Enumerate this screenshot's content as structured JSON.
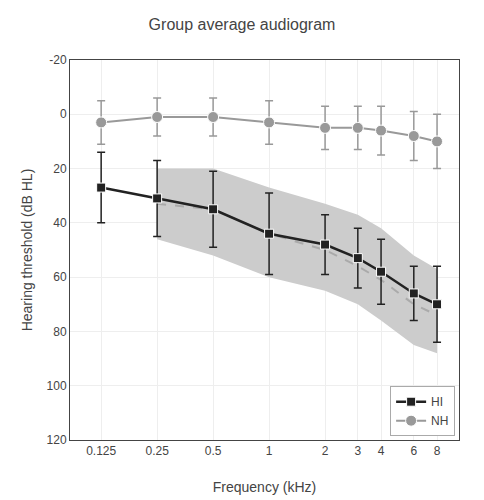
{
  "chart_data": {
    "type": "line",
    "title": "Group average audiogram",
    "x_label": "Frequency (kHz)",
    "y_label": "Hearing threshold (dB HL)",
    "x": [
      0.125,
      0.25,
      0.5,
      1,
      2,
      3,
      4,
      6,
      8
    ],
    "series": [
      {
        "name": "NH",
        "color": "#999999",
        "marker": "circle",
        "values": [
          3,
          1,
          1,
          3,
          5,
          5,
          6,
          8,
          10
        ],
        "errors": [
          8,
          7,
          7,
          8,
          8,
          8,
          9,
          9,
          10
        ]
      },
      {
        "name": "HI",
        "color": "#222222",
        "marker": "square",
        "values": [
          27,
          31,
          35,
          44,
          48,
          53,
          58,
          66,
          70
        ],
        "errors": [
          13,
          14,
          14,
          15,
          11,
          11,
          12,
          10,
          14
        ]
      },
      {
        "x": [
          0.25,
          0.5,
          1,
          2,
          3,
          4,
          6,
          8
        ],
        "color": "#aaaaaa",
        "line_style": "dashed",
        "values": [
          33,
          35,
          44,
          50,
          56,
          61,
          70,
          74
        ]
      }
    ],
    "band": {
      "x": [
        0.25,
        0.5,
        1,
        2,
        3,
        4,
        6,
        8
      ],
      "color": "#cccccc",
      "lower": [
        20,
        20,
        27,
        33,
        37,
        42,
        52,
        57
      ],
      "upper": [
        46,
        52,
        60,
        65,
        70,
        76,
        85,
        88
      ]
    },
    "xlim": [
      0.085,
      10.5
    ],
    "xticks": [
      0.125,
      0.25,
      0.5,
      1,
      2,
      3,
      4,
      6,
      8
    ],
    "ylim": [
      120,
      -20
    ],
    "yticks": [
      -20,
      0,
      20,
      40,
      60,
      80,
      100,
      120
    ],
    "log": "x",
    "grid": true,
    "legend": "lower right"
  }
}
